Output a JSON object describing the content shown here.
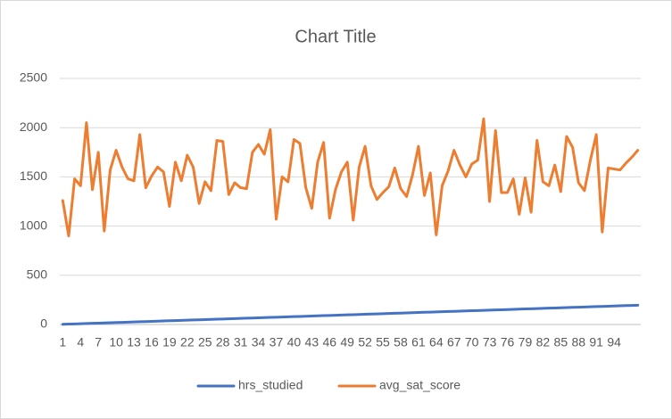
{
  "chart_data": {
    "type": "line",
    "title": "Chart Title",
    "categories": [
      1,
      null,
      null,
      4,
      null,
      null,
      7,
      null,
      null,
      10,
      null,
      null,
      13,
      null,
      null,
      16,
      null,
      null,
      19,
      null,
      null,
      22,
      null,
      null,
      25,
      null,
      null,
      28,
      null,
      null,
      31,
      null,
      null,
      34,
      null,
      null,
      37,
      null,
      null,
      40,
      null,
      null,
      43,
      null,
      null,
      46,
      null,
      null,
      49,
      null,
      null,
      52,
      null,
      null,
      55,
      null,
      null,
      58,
      null,
      null,
      61,
      null,
      null,
      64,
      null,
      null,
      67,
      null,
      null,
      70,
      null,
      null,
      73,
      null,
      null,
      76,
      null,
      null,
      79,
      null,
      null,
      82,
      null,
      null,
      85,
      null,
      null,
      88,
      null,
      null,
      91,
      null,
      null,
      94,
      null,
      null,
      null,
      null
    ],
    "series": [
      {
        "name": "hrs_studied",
        "color": "#4472c4",
        "values": [
          2,
          4,
          6,
          8,
          10,
          12,
          14,
          16,
          18,
          20,
          22,
          24,
          26,
          28,
          30,
          32,
          34,
          36,
          38,
          40,
          42,
          44,
          46,
          48,
          50,
          52,
          54,
          56,
          58,
          60,
          62,
          64,
          66,
          68,
          70,
          72,
          74,
          76,
          78,
          80,
          82,
          84,
          86,
          88,
          90,
          92,
          94,
          96,
          98,
          100,
          102,
          104,
          106,
          108,
          110,
          112,
          114,
          116,
          118,
          120,
          122,
          124,
          126,
          128,
          130,
          132,
          134,
          136,
          138,
          140,
          142,
          144,
          146,
          148,
          150,
          152,
          154,
          156,
          158,
          160,
          162,
          164,
          166,
          168,
          170,
          172,
          174,
          176,
          178,
          180,
          182,
          184,
          186,
          188,
          190,
          192,
          194,
          196
        ]
      },
      {
        "name": "avg_sat_score",
        "color": "#ed7d31",
        "values": [
          1260,
          900,
          1480,
          1410,
          2050,
          1370,
          1750,
          950,
          1570,
          1770,
          1600,
          1480,
          1460,
          1930,
          1390,
          1510,
          1600,
          1550,
          1200,
          1650,
          1460,
          1720,
          1600,
          1230,
          1450,
          1360,
          1870,
          1860,
          1320,
          1440,
          1390,
          1380,
          1750,
          1830,
          1730,
          1980,
          1070,
          1500,
          1450,
          1880,
          1840,
          1390,
          1180,
          1650,
          1850,
          1080,
          1370,
          1550,
          1650,
          1060,
          1600,
          1810,
          1410,
          1270,
          1340,
          1400,
          1590,
          1380,
          1300,
          1520,
          1810,
          1310,
          1540,
          910,
          1410,
          1560,
          1770,
          1620,
          1500,
          1630,
          1670,
          2090,
          1250,
          1970,
          1340,
          1340,
          1480,
          1120,
          1490,
          1140,
          1870,
          1450,
          1410,
          1620,
          1350,
          1910,
          1800,
          1440,
          1360,
          1670,
          1930,
          940,
          1590,
          1580,
          1570,
          1640,
          1700,
          1770
        ]
      }
    ],
    "ylim": [
      0,
      2500
    ],
    "yticks": [
      0,
      500,
      1000,
      1500,
      2000,
      2500
    ],
    "grid": true,
    "legend": "bottom"
  }
}
